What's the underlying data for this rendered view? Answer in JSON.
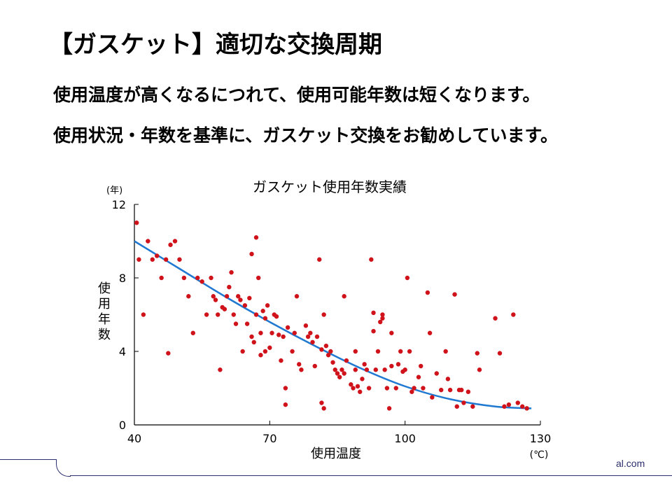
{
  "slide": {
    "title": "【ガスケット】適切な交換周期",
    "lines": [
      "使用温度が高くなるにつれて、使用可能年数は短くなります。",
      "使用状況・年数を基準に、ガスケット交換をお勧めしています。"
    ],
    "footer_text": "al.com"
  },
  "colors": {
    "points": "#d0131b",
    "trend": "#1f78d1",
    "footer": "#2b2f6e"
  },
  "chart_data": {
    "type": "scatter",
    "title": "ガスケット使用年数実績",
    "xlabel": "使用温度",
    "ylabel": "使用年数",
    "x_unit": "(℃)",
    "y_unit": "(年)",
    "xlim": [
      40,
      130
    ],
    "ylim": [
      0,
      12
    ],
    "x_ticks": [
      "40",
      "70",
      "100",
      "130"
    ],
    "y_ticks": [
      "0",
      "4",
      "8",
      "12"
    ],
    "grid": false,
    "trend_line": {
      "x": [
        40,
        50,
        60,
        70,
        80,
        90,
        100,
        110,
        120,
        128
      ],
      "y": [
        10,
        8.5,
        7.0,
        5.6,
        4.3,
        3.1,
        2.1,
        1.4,
        1.0,
        0.9
      ]
    },
    "points": [
      [
        40.5,
        11.0
      ],
      [
        41,
        9.0
      ],
      [
        42,
        6.0
      ],
      [
        43,
        10.0
      ],
      [
        44,
        9.0
      ],
      [
        45,
        9.2
      ],
      [
        46,
        8.0
      ],
      [
        47,
        9.0
      ],
      [
        47.5,
        3.9
      ],
      [
        48,
        9.8
      ],
      [
        49,
        10.0
      ],
      [
        50,
        9.0
      ],
      [
        51,
        8.0
      ],
      [
        52,
        7.0
      ],
      [
        53,
        5.0
      ],
      [
        54,
        8.0
      ],
      [
        55,
        7.8
      ],
      [
        56,
        6.0
      ],
      [
        57,
        8.0
      ],
      [
        57.5,
        7.0
      ],
      [
        58,
        6.8
      ],
      [
        58.5,
        6.0
      ],
      [
        59,
        3.0
      ],
      [
        59.5,
        6.4
      ],
      [
        60,
        6.3
      ],
      [
        60.5,
        7.0
      ],
      [
        61,
        7.5
      ],
      [
        61.5,
        8.3
      ],
      [
        62,
        6.0
      ],
      [
        62.5,
        5.5
      ],
      [
        63,
        7.0
      ],
      [
        63.5,
        6.8
      ],
      [
        64,
        4.0
      ],
      [
        64.5,
        6.5
      ],
      [
        65,
        5.5
      ],
      [
        65.5,
        6.9
      ],
      [
        66,
        4.8
      ],
      [
        66,
        9.3
      ],
      [
        66.5,
        4.5
      ],
      [
        67,
        6.0
      ],
      [
        67,
        10.2
      ],
      [
        67.5,
        8.0
      ],
      [
        68,
        5.0
      ],
      [
        68,
        3.8
      ],
      [
        68.5,
        6.2
      ],
      [
        69,
        5.8
      ],
      [
        69,
        4.0
      ],
      [
        69.5,
        6.5
      ],
      [
        70,
        4.2
      ],
      [
        70.5,
        5.0
      ],
      [
        71,
        6.0
      ],
      [
        71.5,
        5.9
      ],
      [
        72,
        4.9
      ],
      [
        72.5,
        3.5
      ],
      [
        73,
        4.8
      ],
      [
        73.5,
        1.1
      ],
      [
        73.5,
        2.0
      ],
      [
        74,
        5.3
      ],
      [
        75,
        4.0
      ],
      [
        75.5,
        5.0
      ],
      [
        76,
        7.0
      ],
      [
        76.5,
        3.3
      ],
      [
        77,
        3.0
      ],
      [
        78,
        5.4
      ],
      [
        78.5,
        4.8
      ],
      [
        79,
        5.0
      ],
      [
        79.5,
        4.5
      ],
      [
        80,
        3.2
      ],
      [
        80.5,
        4.8
      ],
      [
        81,
        9.0
      ],
      [
        81.5,
        4.1
      ],
      [
        81.5,
        1.2
      ],
      [
        82,
        6.0
      ],
      [
        82,
        0.9
      ],
      [
        82.5,
        4.3
      ],
      [
        83,
        3.8
      ],
      [
        83.5,
        4.0
      ],
      [
        84,
        3.4
      ],
      [
        84.5,
        3.0
      ],
      [
        85,
        2.8
      ],
      [
        85.5,
        2.6
      ],
      [
        86,
        3.0
      ],
      [
        86.5,
        7.0
      ],
      [
        86.5,
        2.8
      ],
      [
        87,
        3.5
      ],
      [
        88,
        2.2
      ],
      [
        88.5,
        2.0
      ],
      [
        89,
        4.0
      ],
      [
        89,
        3.0
      ],
      [
        89.5,
        2.1
      ],
      [
        90,
        1.8
      ],
      [
        90.5,
        2.5
      ],
      [
        91,
        3.3
      ],
      [
        91.5,
        3.0
      ],
      [
        92,
        2.0
      ],
      [
        92.5,
        9.0
      ],
      [
        93,
        5.1
      ],
      [
        93,
        6.1
      ],
      [
        93.5,
        3.0
      ],
      [
        94,
        4.0
      ],
      [
        94.5,
        5.6
      ],
      [
        95,
        5.8
      ],
      [
        95,
        6.0
      ],
      [
        95.5,
        3.0
      ],
      [
        96,
        2.0
      ],
      [
        96.5,
        0.9
      ],
      [
        97,
        5.0
      ],
      [
        97,
        3.2
      ],
      [
        98,
        2.0
      ],
      [
        98.5,
        3.3
      ],
      [
        99,
        4.0
      ],
      [
        99.5,
        2.9
      ],
      [
        100,
        3.0
      ],
      [
        100.5,
        8.0
      ],
      [
        101,
        4.0
      ],
      [
        101.5,
        1.8
      ],
      [
        102,
        2.0
      ],
      [
        103,
        2.6
      ],
      [
        103.5,
        3.2
      ],
      [
        104,
        2.0
      ],
      [
        105,
        7.2
      ],
      [
        105.5,
        5.0
      ],
      [
        106,
        1.5
      ],
      [
        107,
        2.8
      ],
      [
        108,
        1.9
      ],
      [
        109,
        4.0
      ],
      [
        109.5,
        2.5
      ],
      [
        110,
        1.9
      ],
      [
        111,
        7.1
      ],
      [
        111.5,
        1.0
      ],
      [
        112,
        1.9
      ],
      [
        112.5,
        1.9
      ],
      [
        113,
        1.2
      ],
      [
        114,
        1.8
      ],
      [
        115,
        1.0
      ],
      [
        116,
        3.9
      ],
      [
        116.5,
        3.0
      ],
      [
        120,
        5.8
      ],
      [
        121,
        3.9
      ],
      [
        122,
        1.0
      ],
      [
        123,
        1.1
      ],
      [
        124,
        6.0
      ],
      [
        125,
        1.2
      ],
      [
        126,
        1.0
      ],
      [
        127,
        0.9
      ]
    ]
  }
}
